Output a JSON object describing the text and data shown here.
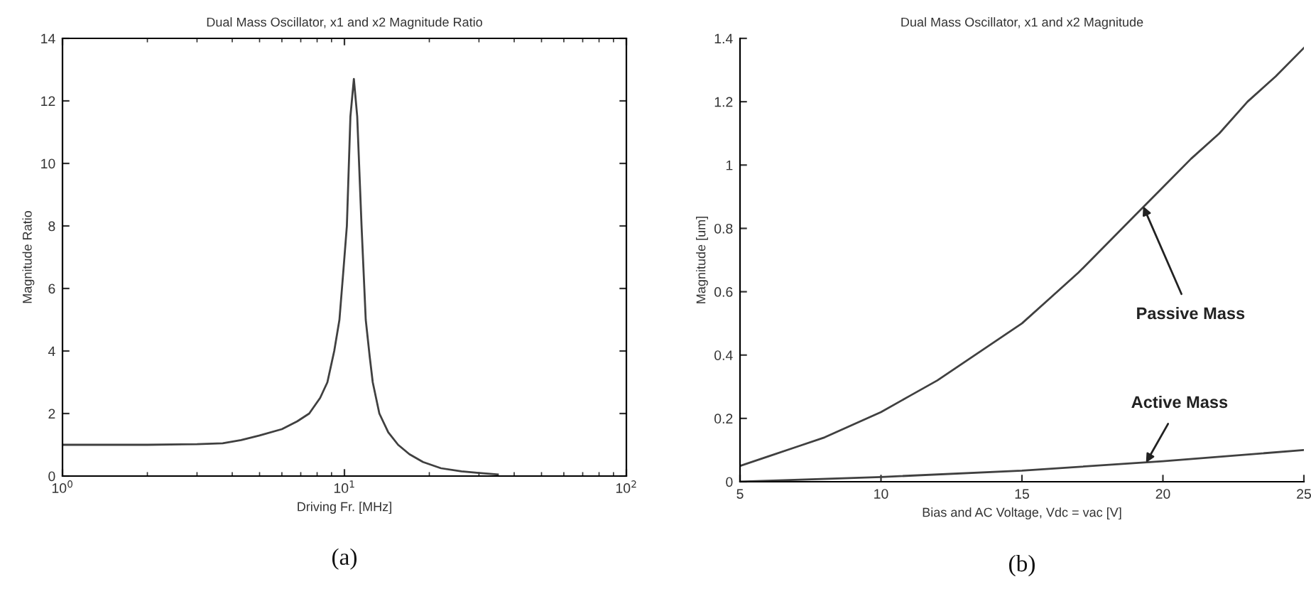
{
  "chart_data": [
    {
      "type": "line",
      "title": "Dual Mass Oscillator, x1 and x2 Magnitude Ratio",
      "xlabel": "Driving Fr. [MHz]",
      "ylabel": "Magnitude Ratio",
      "log": "x",
      "xlim": [
        1,
        100
      ],
      "xticks": [
        {
          "value": 1,
          "label": "10$^{0}$"
        },
        {
          "value": 10,
          "label": "10$^{1}$"
        },
        {
          "value": 100,
          "label": "10$^{2}$"
        }
      ],
      "ylim": [
        0,
        14
      ],
      "yticks": [
        0,
        2,
        4,
        6,
        8,
        10,
        12,
        14
      ],
      "grid": false,
      "series": [
        {
          "color": "#404040",
          "x": [
            1,
            2,
            3,
            3.7,
            4.3,
            5,
            6,
            6.8,
            7.5,
            8.2,
            8.7,
            9.2,
            9.6,
            9.9,
            10.2,
            10.5,
            10.8,
            11.1,
            11.5,
            11.9,
            12.3,
            12.6,
            13.3,
            14.3,
            15.5,
            17,
            19,
            22,
            26,
            30,
            35
          ],
          "values": [
            1.0,
            1.0,
            1.02,
            1.05,
            1.15,
            1.3,
            1.5,
            1.75,
            2.0,
            2.5,
            3.0,
            4.0,
            5.0,
            6.5,
            8.0,
            11.5,
            12.7,
            11.5,
            8.0,
            5.0,
            3.8,
            3.0,
            2.0,
            1.4,
            1.0,
            0.7,
            0.45,
            0.25,
            0.15,
            0.1,
            0.05
          ]
        }
      ],
      "annotations": [
        "(a)"
      ]
    },
    {
      "type": "line",
      "title": "Dual Mass Oscillator, x1 and x2 Magnitude",
      "xlabel": "Bias and AC Voltage, Vdc = vac [V]",
      "ylabel": "Magnitude [um]",
      "xlim": [
        5,
        25
      ],
      "xticks": [
        5,
        10,
        15,
        20,
        25
      ],
      "ylim": [
        0,
        1.4
      ],
      "yticks": [
        0,
        0.2,
        0.4,
        0.6,
        0.8,
        1,
        1.2,
        1.4
      ],
      "grid": false,
      "series": [
        {
          "color": "#404040",
          "x": [
            5,
            6,
            7,
            8,
            9,
            10,
            11,
            12,
            13,
            14,
            15,
            16,
            17,
            18,
            19,
            20,
            21,
            22,
            23,
            24,
            25
          ],
          "values": [
            0.05,
            0.08,
            0.11,
            0.14,
            0.18,
            0.22,
            0.27,
            0.32,
            0.38,
            0.44,
            0.5,
            0.58,
            0.66,
            0.75,
            0.84,
            0.93,
            1.02,
            1.1,
            1.2,
            1.28,
            1.37
          ]
        },
        {
          "color": "#404040",
          "x": [
            5,
            10,
            15,
            20,
            25
          ],
          "values": [
            0.0,
            0.015,
            0.035,
            0.065,
            0.1
          ]
        }
      ],
      "annotations": [
        {
          "text": "Passive Mass",
          "x": 19.3,
          "y": 0.87
        },
        {
          "text": "Active Mass",
          "x": 19.4,
          "y": 0.06
        },
        "(b)"
      ]
    }
  ]
}
